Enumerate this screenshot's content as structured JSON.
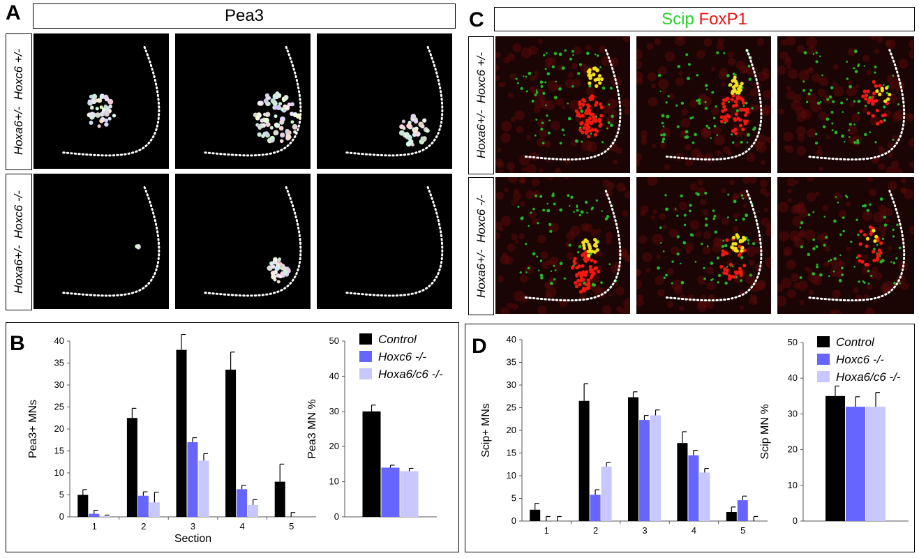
{
  "panels": {
    "A": {
      "letter": "A",
      "title": "Pea3"
    },
    "C": {
      "letter": "C",
      "title_parts": [
        {
          "text": "Scip",
          "color": "#2bd12b"
        },
        {
          "text": "FoxP1",
          "color": "#ee1111"
        }
      ]
    },
    "B": {
      "letter": "B"
    },
    "D": {
      "letter": "D"
    }
  },
  "row_labels": {
    "top": {
      "gene1": "Hoxa6+/-",
      "gene2": "Hoxc6 +/-"
    },
    "bottom": {
      "gene1": "Hoxa6+/-",
      "gene2": "Hoxc6 -/-"
    }
  },
  "micrographs": {
    "stain_pea3": "grayscale",
    "stain_scip": "green",
    "stain_foxp1": "red",
    "overlap": "yellow"
  },
  "legend": {
    "items": [
      {
        "label": "Control",
        "color": "#000000"
      },
      {
        "label": "Hoxc6 -/-",
        "color": "#6666ff"
      },
      {
        "label": "Hoxa6/c6 -/-",
        "color": "#c8c8ff"
      }
    ]
  },
  "chart_data": [
    {
      "id": "B-left",
      "type": "bar",
      "ylabel": "Pea3+ MNs",
      "xlabel": "Section",
      "categories": [
        "1",
        "2",
        "3",
        "4",
        "5"
      ],
      "ylim": [
        0,
        40
      ],
      "yticks": [
        "0",
        "5",
        "10",
        "15",
        "20",
        "25",
        "30",
        "35",
        "40"
      ],
      "series": [
        {
          "name": "Control",
          "color": "#000000",
          "values": [
            5,
            22.5,
            38,
            33.5,
            8
          ],
          "errors": [
            1.2,
            2.2,
            3.5,
            4,
            4
          ]
        },
        {
          "name": "Hoxc6 -/-",
          "color": "#6666ff",
          "values": [
            0.7,
            4.8,
            17,
            6.3,
            0
          ],
          "errors": [
            0.8,
            0.9,
            1,
            0.9,
            1
          ]
        },
        {
          "name": "Hoxa6/c6 -/-",
          "color": "#c8c8ff",
          "values": [
            0.2,
            3.3,
            12.8,
            2.7,
            0
          ],
          "errors": [
            0.2,
            2.3,
            1.6,
            1.2,
            0
          ]
        }
      ]
    },
    {
      "id": "B-right",
      "type": "bar",
      "ylabel": "Pea3 MN %",
      "ylim": [
        0,
        50
      ],
      "yticks": [
        "0",
        "10",
        "20",
        "30",
        "40",
        "50"
      ],
      "series": [
        {
          "name": "Control",
          "color": "#000000",
          "values": [
            30
          ],
          "errors": [
            1.8
          ]
        },
        {
          "name": "Hoxc6 -/-",
          "color": "#6666ff",
          "values": [
            14
          ],
          "errors": [
            0.7
          ]
        },
        {
          "name": "Hoxa6/c6 -/-",
          "color": "#c8c8ff",
          "values": [
            13
          ],
          "errors": [
            0.8
          ]
        }
      ]
    },
    {
      "id": "D-left",
      "type": "bar",
      "ylabel": "Scip+ MNs",
      "xlabel": "",
      "categories": [
        "1",
        "2",
        "3",
        "4",
        "5"
      ],
      "ylim": [
        0,
        40
      ],
      "yticks": [
        "0",
        "5",
        "10",
        "15",
        "20",
        "25",
        "30",
        "35",
        "40"
      ],
      "series": [
        {
          "name": "Control",
          "color": "#000000",
          "values": [
            2.5,
            26.5,
            27.3,
            17.2,
            2
          ],
          "errors": [
            1.4,
            3.8,
            1.2,
            2.5,
            1.1
          ]
        },
        {
          "name": "Hoxc6 -/-",
          "color": "#6666ff",
          "values": [
            0,
            5.8,
            22.3,
            14.5,
            4.6
          ],
          "errors": [
            1,
            1.1,
            1,
            1.1,
            0.9
          ]
        },
        {
          "name": "Hoxa6/c6 -/-",
          "color": "#c8c8ff",
          "values": [
            0,
            12,
            23.3,
            10.7,
            0
          ],
          "errors": [
            1,
            0.9,
            1.2,
            0.9,
            1
          ]
        }
      ]
    },
    {
      "id": "D-right",
      "type": "bar",
      "ylabel": "Scip MN %",
      "ylim": [
        0,
        50
      ],
      "yticks": [
        "0",
        "10",
        "20",
        "30",
        "40",
        "50"
      ],
      "series": [
        {
          "name": "Control",
          "color": "#000000",
          "values": [
            35
          ],
          "errors": [
            2.8
          ]
        },
        {
          "name": "Hoxc6 -/-",
          "color": "#6666ff",
          "values": [
            32
          ],
          "errors": [
            2.8
          ]
        },
        {
          "name": "Hoxa6/c6 -/-",
          "color": "#c8c8ff",
          "values": [
            32
          ],
          "errors": [
            4
          ]
        }
      ]
    }
  ]
}
